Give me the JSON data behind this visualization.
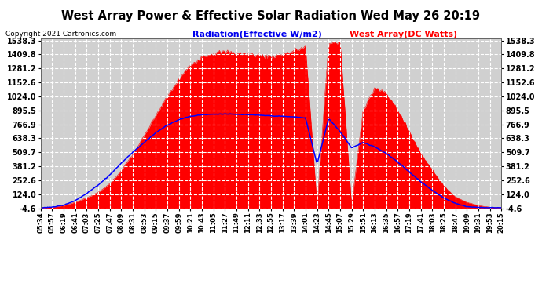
{
  "title": "West Array Power & Effective Solar Radiation Wed May 26 20:19",
  "copyright": "Copyright 2021 Cartronics.com",
  "legend_radiation": "Radiation(Effective W/m2)",
  "legend_array": "West Array(DC Watts)",
  "yticks": [
    -4.6,
    124.0,
    252.6,
    381.2,
    509.7,
    638.3,
    766.9,
    895.5,
    1024.0,
    1152.6,
    1281.2,
    1409.8,
    1538.3
  ],
  "ymin": -4.6,
  "ymax": 1538.3,
  "bg_color": "#ffffff",
  "plot_bg_color": "#d0d0d0",
  "grid_color": "#ffffff",
  "fill_color": "#ff0000",
  "line_color": "#0000ff",
  "title_color": "#000000",
  "radiation_label_color": "#0000ee",
  "array_label_color": "#ff0000",
  "time_labels": [
    "05:34",
    "05:57",
    "06:19",
    "06:41",
    "07:03",
    "07:25",
    "07:47",
    "08:09",
    "08:31",
    "08:53",
    "09:15",
    "09:37",
    "09:59",
    "10:21",
    "10:43",
    "11:05",
    "11:27",
    "11:49",
    "12:11",
    "12:33",
    "12:55",
    "13:17",
    "13:39",
    "14:01",
    "14:23",
    "14:45",
    "15:07",
    "15:29",
    "15:51",
    "16:13",
    "16:35",
    "16:57",
    "17:19",
    "17:41",
    "18:03",
    "18:25",
    "18:47",
    "19:09",
    "19:31",
    "19:53",
    "20:15"
  ]
}
